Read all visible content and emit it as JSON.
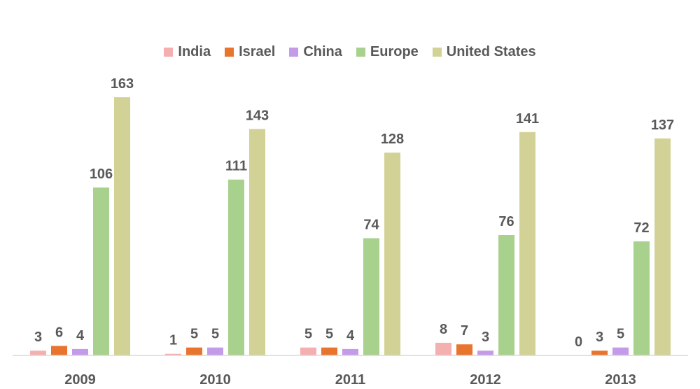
{
  "chart_data": {
    "type": "bar",
    "title": "",
    "xlabel": "",
    "ylabel": "",
    "categories": [
      "2009",
      "2010",
      "2011",
      "2012",
      "2013"
    ],
    "series": [
      {
        "name": "India",
        "color": "#f4b0b0",
        "values": [
          3,
          1,
          5,
          8,
          0
        ]
      },
      {
        "name": "Israel",
        "color": "#e8742e",
        "values": [
          6,
          5,
          5,
          7,
          3
        ]
      },
      {
        "name": "China",
        "color": "#c49be8",
        "values": [
          4,
          5,
          4,
          3,
          5
        ]
      },
      {
        "name": "Europe",
        "color": "#a9d18e",
        "values": [
          106,
          111,
          74,
          76,
          72
        ]
      },
      {
        "name": "United States",
        "color": "#d2d296",
        "values": [
          163,
          143,
          128,
          141,
          137
        ]
      }
    ],
    "ylim": [
      0,
      163
    ],
    "grid": false,
    "legend": "top-center",
    "data_labels": true,
    "colors": {
      "axis": "#d9d9d9",
      "text": "#595959"
    }
  }
}
